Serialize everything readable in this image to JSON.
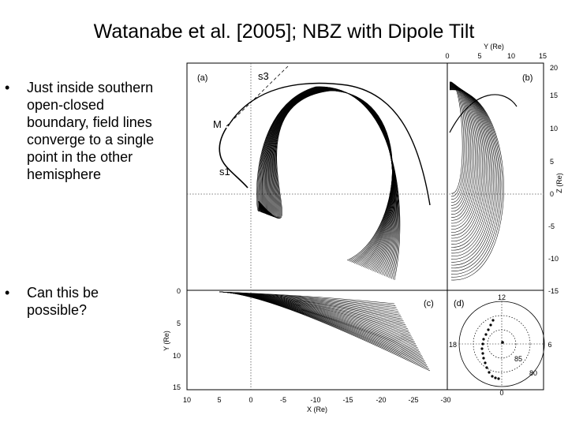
{
  "slide": {
    "title": "Watanabe et al. [2005]; NBZ with Dipole Tilt",
    "bullets": [
      "Just inside southern open-closed boundary, field lines converge to a single point in the other hemisphere",
      "Can this be possible?"
    ]
  },
  "figure": {
    "panel_labels": {
      "a": "(a)",
      "b": "(b)",
      "c": "(c)",
      "d": "(d)"
    },
    "curve_labels": {
      "s3": "s3",
      "m": "M",
      "s1": "s1"
    },
    "top_axis": {
      "label": "Y (Re)",
      "ticks": [
        "0",
        "5",
        "10",
        "15"
      ]
    },
    "right_axis": {
      "label": "Z (Re)",
      "ticks": [
        "20",
        "15",
        "10",
        "5",
        "0",
        "-5",
        "-10",
        "-15"
      ]
    },
    "left_axis": {
      "label": "Y (Re)",
      "ticks": [
        "0",
        "5",
        "10",
        "15"
      ]
    },
    "bottom_axis": {
      "label": "X (Re)",
      "ticks": [
        "10",
        "5",
        "0",
        "-5",
        "-10",
        "-15",
        "-20",
        "-25",
        "-30"
      ]
    },
    "polar": {
      "top": "12",
      "left": "18",
      "right": "6",
      "bottom": "0",
      "inner": "85",
      "outer": "80"
    }
  }
}
